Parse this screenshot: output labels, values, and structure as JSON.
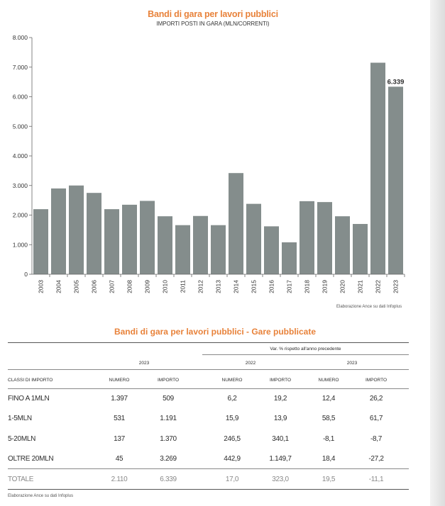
{
  "chart_data": {
    "type": "bar",
    "title": "Bandi di gara per lavori pubblici",
    "subtitle": "IMPORTI POSTI IN GARA (MLN/CORRENTI)",
    "categories": [
      "2003",
      "2004",
      "2005",
      "2006",
      "2007",
      "2008",
      "2009",
      "2010",
      "2011",
      "2012",
      "2013",
      "2014",
      "2015",
      "2016",
      "2017",
      "2018",
      "2019",
      "2020",
      "2021",
      "2022",
      "2023"
    ],
    "values": [
      2200,
      2900,
      3000,
      2750,
      2200,
      2350,
      2480,
      1960,
      1660,
      1970,
      1660,
      3420,
      2380,
      1620,
      1080,
      2470,
      2440,
      1960,
      1700,
      7150,
      6339
    ],
    "ylim": [
      0,
      8000
    ],
    "yticks": [
      "0",
      "1.000",
      "2.000",
      "3.000",
      "4.000",
      "5.000",
      "6.000",
      "7.000",
      "8.000"
    ],
    "ytick_values": [
      0,
      1000,
      2000,
      3000,
      4000,
      5000,
      6000,
      7000,
      8000
    ],
    "annotation": "6.339",
    "bar_color": "#848d8c",
    "xlabel": "",
    "ylabel": ""
  },
  "chart_source": "Elaborazione Ance su dati Infoplus",
  "table": {
    "title": "Bandi di gara per lavori pubblici - Gare pubblicate",
    "var_header": "Var. % rispetto all'anno precedente",
    "year_2023": "2023",
    "year_2022": "2022",
    "year_2023b": "2023",
    "columns": [
      "CLASSI DI IMPORTO",
      "NUMERO",
      "IMPORTO",
      "NUMERO",
      "IMPORTO",
      "NUMERO",
      "IMPORTO"
    ],
    "rows": [
      {
        "label": "FINO A 1MLN",
        "cells": [
          "1.397",
          "509",
          "6,2",
          "19,2",
          "12,4",
          "26,2"
        ]
      },
      {
        "label": "1-5MLN",
        "cells": [
          "531",
          "1.191",
          "15,9",
          "13,9",
          "58,5",
          "61,7"
        ]
      },
      {
        "label": "5-20MLN",
        "cells": [
          "137",
          "1.370",
          "246,5",
          "340,1",
          "-8,1",
          "-8,7"
        ]
      },
      {
        "label": "OLTRE 20MLN",
        "cells": [
          "45",
          "3.269",
          "442,9",
          "1.149,7",
          "18,4",
          "-27,2"
        ]
      }
    ],
    "total": {
      "label": "TOTALE",
      "cells": [
        "2.110",
        "6.339",
        "17,0",
        "323,0",
        "19,5",
        "-11,1"
      ]
    },
    "source": "Elaborazione Ance su dati Infoplus"
  }
}
